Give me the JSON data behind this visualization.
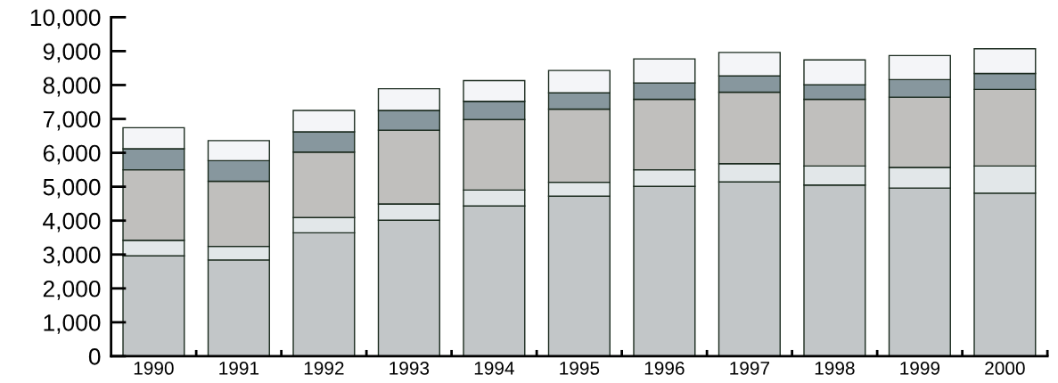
{
  "chart_data": {
    "type": "bar",
    "stacked": true,
    "categories": [
      "1990",
      "1991",
      "1992",
      "1993",
      "1994",
      "1995",
      "1996",
      "1997",
      "1998",
      "1999",
      "2000"
    ],
    "series": [
      {
        "color": "#c2c6c8",
        "values": [
          2960,
          2840,
          3640,
          4010,
          4430,
          4720,
          5010,
          5140,
          5050,
          4960,
          4810
        ]
      },
      {
        "color": "#e2e7e9",
        "values": [
          460,
          400,
          450,
          480,
          470,
          410,
          490,
          540,
          560,
          610,
          800
        ]
      },
      {
        "color": "#c0bfbd",
        "values": [
          2080,
          1920,
          1930,
          2180,
          2080,
          2160,
          2080,
          2110,
          1970,
          2070,
          2260
        ]
      },
      {
        "color": "#87979e",
        "values": [
          620,
          610,
          600,
          580,
          540,
          480,
          480,
          480,
          430,
          520,
          470
        ]
      },
      {
        "color": "#f4f5f8",
        "values": [
          620,
          590,
          630,
          640,
          610,
          660,
          710,
          690,
          730,
          710,
          730
        ]
      }
    ],
    "ylim": [
      0,
      10000
    ],
    "yticks": [
      0,
      {
        "value": 1000,
        "label": "1,000"
      },
      {
        "value": 2000,
        "label": "2,000"
      },
      {
        "value": 3000,
        "label": "3,000"
      },
      {
        "value": 4000,
        "label": "4,000"
      },
      {
        "value": 5000,
        "label": "5,000"
      },
      {
        "value": 6000,
        "label": "6,000"
      },
      {
        "value": 7000,
        "label": "7,000"
      },
      {
        "value": 8000,
        "label": "8,000"
      },
      {
        "value": 9000,
        "label": "9,000"
      },
      {
        "value": 10000,
        "label": "10,000"
      }
    ],
    "grid": false,
    "legend": false
  }
}
